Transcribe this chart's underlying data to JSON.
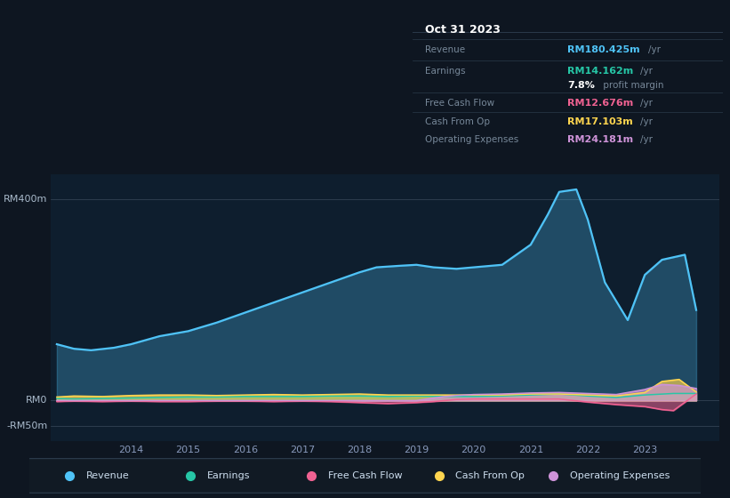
{
  "bg_color": "#0e1621",
  "plot_bg_color": "#0e1e2e",
  "title_box": {
    "date": "Oct 31 2023",
    "rows": [
      {
        "label": "Revenue",
        "value": "RM180.425m",
        "unit": "/yr",
        "value_color": "#4fc3f7"
      },
      {
        "label": "Earnings",
        "value": "RM14.162m",
        "unit": "/yr",
        "value_color": "#26c6a6"
      },
      {
        "label": "",
        "value": "7.8%",
        "unit": " profit margin",
        "value_color": "#ffffff"
      },
      {
        "label": "Free Cash Flow",
        "value": "RM12.676m",
        "unit": "/yr",
        "value_color": "#f06292"
      },
      {
        "label": "Cash From Op",
        "value": "RM17.103m",
        "unit": "/yr",
        "value_color": "#ffd54f"
      },
      {
        "label": "Operating Expenses",
        "value": "RM24.181m",
        "unit": "/yr",
        "value_color": "#ce93d8"
      }
    ]
  },
  "ytick_labels": [
    "RM400m",
    "RM0",
    "-RM50m"
  ],
  "ytick_values": [
    400,
    0,
    -50
  ],
  "ylim": [
    -80,
    450
  ],
  "xlim_start": 2012.6,
  "xlim_end": 2024.3,
  "xticks": [
    2014,
    2015,
    2016,
    2017,
    2018,
    2019,
    2020,
    2021,
    2022,
    2023
  ],
  "legend_items": [
    {
      "label": "Revenue",
      "color": "#4fc3f7"
    },
    {
      "label": "Earnings",
      "color": "#26c6a6"
    },
    {
      "label": "Free Cash Flow",
      "color": "#f06292"
    },
    {
      "label": "Cash From Op",
      "color": "#ffd54f"
    },
    {
      "label": "Operating Expenses",
      "color": "#ce93d8"
    }
  ],
  "series": {
    "Revenue": {
      "color": "#4fc3f7",
      "x": [
        2012.7,
        2013.0,
        2013.3,
        2013.7,
        2014.0,
        2014.5,
        2015.0,
        2015.5,
        2016.0,
        2016.5,
        2017.0,
        2017.5,
        2018.0,
        2018.3,
        2018.7,
        2019.0,
        2019.3,
        2019.7,
        2020.0,
        2020.5,
        2021.0,
        2021.3,
        2021.5,
        2021.8,
        2022.0,
        2022.3,
        2022.7,
        2023.0,
        2023.3,
        2023.7,
        2023.9
      ],
      "y": [
        112,
        103,
        100,
        105,
        112,
        128,
        138,
        155,
        175,
        195,
        215,
        235,
        255,
        265,
        268,
        270,
        265,
        262,
        265,
        270,
        310,
        370,
        415,
        420,
        360,
        235,
        160,
        250,
        280,
        290,
        180
      ]
    },
    "Earnings": {
      "color": "#26c6a6",
      "x": [
        2012.7,
        2013.0,
        2013.5,
        2014.0,
        2014.5,
        2015.0,
        2015.5,
        2016.0,
        2016.5,
        2017.0,
        2017.5,
        2018.0,
        2018.5,
        2019.0,
        2019.5,
        2020.0,
        2020.5,
        2021.0,
        2021.5,
        2022.0,
        2022.5,
        2023.0,
        2023.5,
        2023.9
      ],
      "y": [
        4,
        3,
        4,
        5,
        6,
        7,
        7,
        8,
        8,
        8,
        9,
        9,
        8,
        9,
        8,
        8,
        9,
        11,
        13,
        9,
        6,
        11,
        14,
        14
      ]
    },
    "FreeCashFlow": {
      "color": "#f06292",
      "x": [
        2012.7,
        2013.0,
        2013.5,
        2014.0,
        2014.5,
        2015.0,
        2015.5,
        2016.0,
        2016.5,
        2017.0,
        2017.5,
        2018.0,
        2018.5,
        2019.0,
        2019.3,
        2019.5,
        2019.7,
        2020.0,
        2020.5,
        2021.0,
        2021.5,
        2022.0,
        2022.5,
        2023.0,
        2023.3,
        2023.5,
        2023.9
      ],
      "y": [
        -2,
        -1,
        -2,
        -1,
        -2,
        -2,
        -1,
        -1,
        -2,
        -1,
        -2,
        -4,
        -6,
        -4,
        -2,
        0,
        2,
        3,
        3,
        3,
        3,
        -3,
        -8,
        -12,
        -18,
        -20,
        13
      ]
    },
    "CashFromOp": {
      "color": "#ffd54f",
      "x": [
        2012.7,
        2013.0,
        2013.5,
        2014.0,
        2014.5,
        2015.0,
        2015.5,
        2016.0,
        2016.5,
        2017.0,
        2017.5,
        2018.0,
        2018.5,
        2019.0,
        2019.5,
        2020.0,
        2020.5,
        2021.0,
        2021.5,
        2022.0,
        2022.5,
        2023.0,
        2023.3,
        2023.6,
        2023.9
      ],
      "y": [
        7,
        9,
        8,
        10,
        11,
        11,
        10,
        11,
        12,
        11,
        12,
        13,
        11,
        11,
        11,
        11,
        11,
        13,
        13,
        11,
        9,
        16,
        38,
        42,
        17
      ]
    },
    "OperatingExpenses": {
      "color": "#ce93d8",
      "x": [
        2012.7,
        2013.0,
        2013.5,
        2014.0,
        2014.5,
        2015.0,
        2015.5,
        2016.0,
        2016.5,
        2017.0,
        2017.5,
        2018.0,
        2018.5,
        2019.0,
        2019.3,
        2019.5,
        2019.7,
        2020.0,
        2020.5,
        2021.0,
        2021.5,
        2022.0,
        2022.5,
        2023.0,
        2023.3,
        2023.6,
        2023.9
      ],
      "y": [
        0,
        0,
        0,
        0,
        0,
        0,
        0,
        0,
        0,
        0,
        0,
        0,
        0,
        0,
        5,
        8,
        10,
        12,
        13,
        15,
        16,
        14,
        12,
        22,
        32,
        30,
        24
      ]
    }
  }
}
